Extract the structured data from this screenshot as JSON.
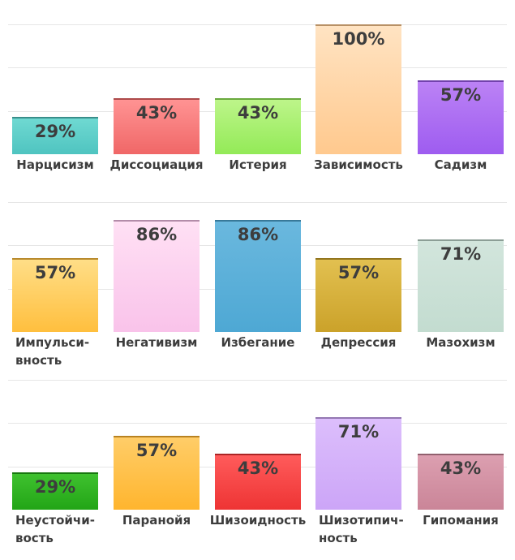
{
  "chart_data": [
    {
      "type": "bar",
      "ylim": [
        0,
        100
      ],
      "grid": true,
      "categories": [
        "Нарцисизм",
        "Диссоциация",
        "Истерия",
        "Зависимость",
        "Садизм"
      ],
      "values": [
        29,
        43,
        43,
        100,
        57
      ],
      "value_labels": [
        "29%",
        "43%",
        "43%",
        "100%",
        "57%"
      ],
      "colors": [
        [
          "#6fd9d2",
          "#4fc4c0"
        ],
        [
          "#ff9393",
          "#f06767"
        ],
        [
          "#bdf58a",
          "#93ea57"
        ],
        [
          "#ffe3c2",
          "#ffc98e"
        ],
        [
          "#bb82f5",
          "#9e5cf0"
        ]
      ]
    },
    {
      "type": "bar",
      "ylim": [
        0,
        100
      ],
      "grid": true,
      "categories": [
        "Импульси-\nвность",
        "Негативизм",
        "Избегание",
        "Депрессия",
        "Мазохизм"
      ],
      "values": [
        57,
        86,
        86,
        57,
        71
      ],
      "value_labels": [
        "57%",
        "86%",
        "86%",
        "57%",
        "71%"
      ],
      "colors": [
        [
          "#ffde87",
          "#ffbf3e"
        ],
        [
          "#ffe0f4",
          "#f9c3ea"
        ],
        [
          "#6ab8de",
          "#4ea8d4"
        ],
        [
          "#e2c050",
          "#cba22a"
        ],
        [
          "#d2e5dc",
          "#c3dcd0"
        ]
      ]
    },
    {
      "type": "bar",
      "ylim": [
        0,
        100
      ],
      "grid": true,
      "categories": [
        "Неустойчи-\nвость",
        "Паранойя",
        "Шизоидность",
        "Шизотипич-\nность",
        "Гипомания"
      ],
      "values": [
        29,
        57,
        43,
        71,
        43
      ],
      "value_labels": [
        "29%",
        "57%",
        "43%",
        "71%",
        "43%"
      ],
      "colors": [
        [
          "#3fc12f",
          "#22a516"
        ],
        [
          "#ffcd68",
          "#ffb52e"
        ],
        [
          "#ff5b5b",
          "#ee3434"
        ],
        [
          "#dcbefc",
          "#cca5f7"
        ],
        [
          "#dc9fb0",
          "#ca8598"
        ]
      ]
    }
  ]
}
